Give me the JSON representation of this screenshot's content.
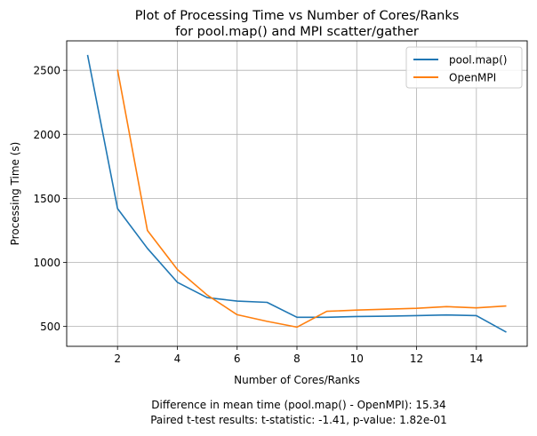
{
  "chart_data": {
    "type": "line",
    "title_line1": "Plot of Processing Time vs Number of Cores/Ranks",
    "title_line2": "for pool.map() and MPI scatter/gather",
    "xlabel": "Number of Cores/Ranks",
    "ylabel": "Processing Time (s)",
    "xlim": [
      0.3,
      15.7
    ],
    "ylim": [
      345,
      2730
    ],
    "xticks": [
      2,
      4,
      6,
      8,
      10,
      12,
      14
    ],
    "yticks": [
      500,
      1000,
      1500,
      2000,
      2500
    ],
    "grid": true,
    "legend_position": "top-right",
    "series": [
      {
        "name": "pool.map()",
        "color": "#1f77b4",
        "x": [
          1,
          2,
          3,
          4,
          5,
          6,
          7,
          8,
          9,
          10,
          11,
          12,
          13,
          14,
          15
        ],
        "y": [
          2620,
          1420,
          1110,
          845,
          725,
          698,
          688,
          572,
          572,
          578,
          580,
          585,
          590,
          585,
          455
        ]
      },
      {
        "name": "OpenMPI",
        "color": "#ff7f0e",
        "x": [
          2,
          3,
          4,
          5,
          6,
          7,
          8,
          9,
          10,
          11,
          12,
          13,
          14,
          15
        ],
        "y": [
          2505,
          1250,
          945,
          745,
          592,
          540,
          495,
          618,
          628,
          635,
          642,
          655,
          645,
          660
        ]
      }
    ],
    "footer_line1": "Difference in mean time (pool.map() - OpenMPI): 15.34",
    "footer_line2": "Paired t-test results: t-statistic: -1.41, p-value: 1.82e-01"
  }
}
